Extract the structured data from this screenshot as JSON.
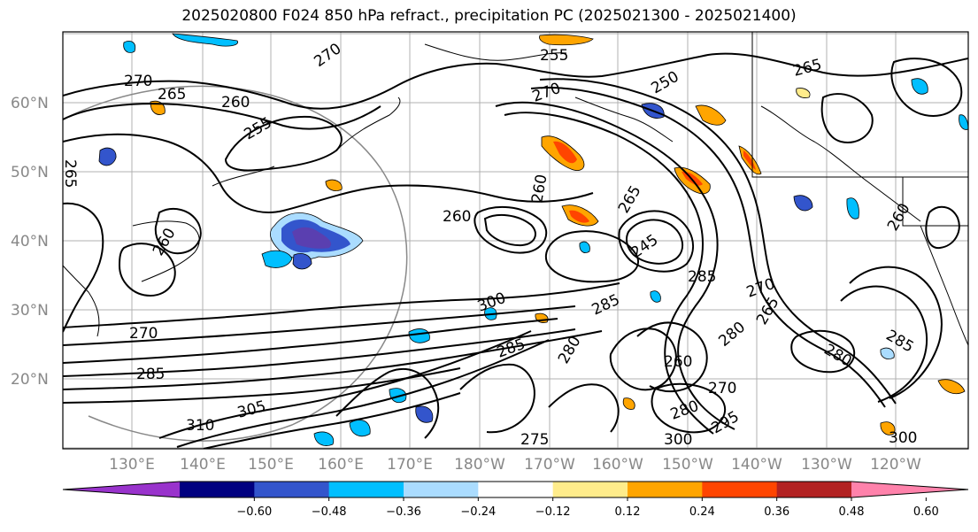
{
  "title": "2025020800 F024 850 hPa refract., precipitation PC (2025021300 - 2025021400)",
  "map": {
    "lat_labels": [
      "60°N",
      "50°N",
      "40°N",
      "30°N",
      "20°N"
    ],
    "lon_labels": [
      "130°E",
      "140°E",
      "150°E",
      "160°E",
      "170°E",
      "180°W",
      "170°W",
      "160°W",
      "150°W",
      "140°W",
      "130°W",
      "120°W"
    ],
    "contour_labels": [
      {
        "text": "270"
      },
      {
        "text": "265"
      },
      {
        "text": "260"
      },
      {
        "text": "255"
      },
      {
        "text": "270"
      },
      {
        "text": "265"
      },
      {
        "text": "260"
      },
      {
        "text": "260"
      },
      {
        "text": "255"
      },
      {
        "text": "250"
      },
      {
        "text": "270"
      },
      {
        "text": "265"
      },
      {
        "text": "260"
      },
      {
        "text": "265"
      },
      {
        "text": "245"
      },
      {
        "text": "285"
      },
      {
        "text": "270"
      },
      {
        "text": "265"
      },
      {
        "text": "280"
      },
      {
        "text": "280"
      },
      {
        "text": "285"
      },
      {
        "text": "270"
      },
      {
        "text": "285"
      },
      {
        "text": "280"
      },
      {
        "text": "285"
      },
      {
        "text": "260"
      },
      {
        "text": "270"
      },
      {
        "text": "280"
      },
      {
        "text": "295"
      },
      {
        "text": "300"
      },
      {
        "text": "275"
      },
      {
        "text": "305"
      },
      {
        "text": "310"
      },
      {
        "text": "300"
      },
      {
        "text": "300"
      },
      {
        "text": "285"
      },
      {
        "text": "260"
      }
    ]
  },
  "colorbar": {
    "colors": [
      "#9933cc",
      "#000080",
      "#3355cc",
      "#00bfff",
      "#aadcff",
      "#ffffff",
      "#ffec8b",
      "#ffa500",
      "#ff4500",
      "#b22222",
      "#ff82ab"
    ],
    "tick_labels": [
      "−0.60",
      "−0.48",
      "−0.36",
      "−0.24",
      "−0.12",
      "0.12",
      "0.24",
      "0.36",
      "0.48",
      "0.60"
    ]
  }
}
